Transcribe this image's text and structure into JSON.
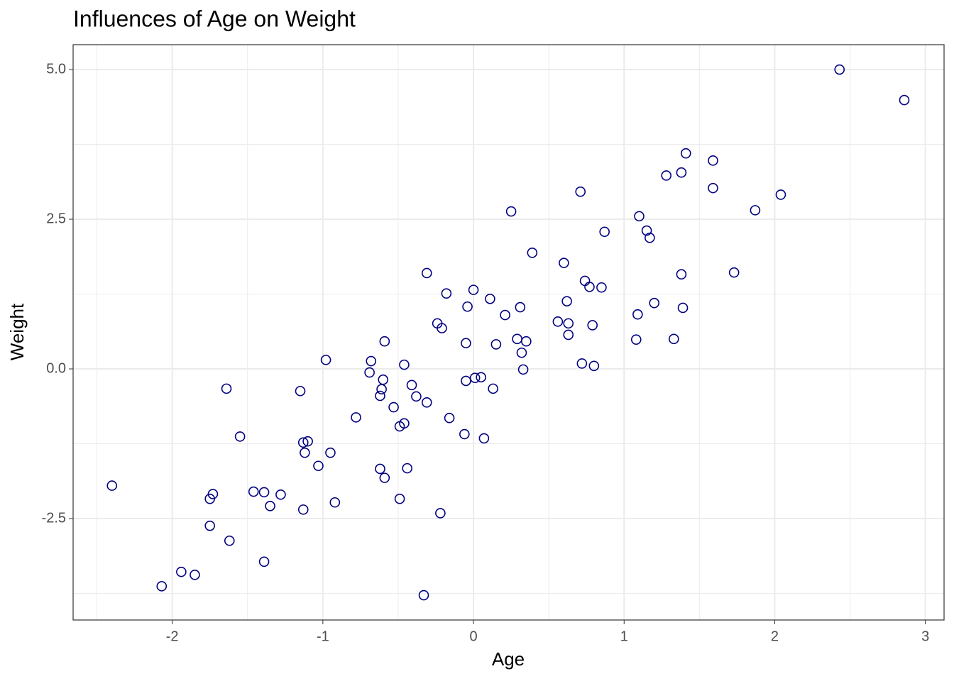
{
  "chart_data": {
    "type": "scatter",
    "title": "Influences of Age on Weight",
    "x_label": "Age",
    "y_label": "Weight",
    "xlim": [
      -2.658,
      3.124
    ],
    "ylim": [
      -4.194,
      5.415
    ],
    "xticks": [
      -2,
      -1,
      0,
      1,
      2,
      3
    ],
    "yticks": [
      {
        "value": -2.5,
        "label": "-2.5"
      },
      {
        "value": 0,
        "label": "0.0"
      },
      {
        "value": 2.5,
        "label": "2.5"
      },
      {
        "value": 5,
        "label": "5.0"
      }
    ],
    "grid": true,
    "color": "#000080",
    "x": [
      -2.4,
      -2.07,
      -1.94,
      -1.85,
      -1.75,
      -1.73,
      -1.75,
      -1.62,
      -1.64,
      -1.55,
      -1.46,
      -1.39,
      -1.39,
      -1.35,
      -1.28,
      -1.15,
      -1.13,
      -1.1,
      -1.12,
      -1.13,
      -1.03,
      -0.98,
      -0.95,
      -0.92,
      -0.78,
      -0.68,
      -0.69,
      -0.59,
      -0.6,
      -0.61,
      -0.62,
      -0.62,
      -0.59,
      -0.53,
      -0.49,
      -0.46,
      -0.46,
      -0.44,
      -0.49,
      -0.41,
      -0.38,
      -0.33,
      -0.31,
      -0.31,
      -0.24,
      -0.22,
      -0.21,
      -0.18,
      -0.16,
      -0.06,
      -0.05,
      -0.05,
      -0.04,
      0.0,
      0.01,
      0.05,
      0.07,
      0.11,
      0.13,
      0.15,
      0.21,
      0.25,
      0.29,
      0.31,
      0.32,
      0.33,
      0.35,
      0.39,
      0.56,
      0.6,
      0.62,
      0.63,
      0.63,
      0.71,
      0.72,
      0.74,
      0.77,
      0.79,
      0.8,
      0.85,
      0.87,
      1.08,
      1.09,
      1.1,
      1.15,
      1.17,
      1.2,
      1.28,
      1.33,
      1.38,
      1.38,
      1.39,
      1.41,
      1.59,
      1.59,
      1.73,
      1.87,
      2.04,
      2.43,
      2.86
    ],
    "y": [
      -1.95,
      -3.63,
      -3.39,
      -3.44,
      -2.17,
      -2.09,
      -2.62,
      -2.87,
      -0.33,
      -1.13,
      -2.05,
      -2.06,
      -3.22,
      -2.29,
      -2.1,
      -0.37,
      -1.23,
      -1.21,
      -1.4,
      -2.35,
      -1.62,
      0.15,
      -1.4,
      -2.23,
      -0.81,
      0.13,
      -0.06,
      0.46,
      -0.18,
      -0.34,
      -0.45,
      -1.67,
      -1.82,
      -0.64,
      -0.96,
      -0.91,
      0.07,
      -1.66,
      -2.17,
      -0.27,
      -0.46,
      -3.78,
      1.6,
      -0.56,
      0.76,
      -2.41,
      0.68,
      1.26,
      -0.82,
      -1.09,
      0.43,
      -0.2,
      1.04,
      1.32,
      -0.15,
      -0.14,
      -1.16,
      1.17,
      -0.33,
      0.41,
      0.9,
      2.63,
      0.5,
      1.03,
      0.27,
      -0.01,
      0.46,
      1.94,
      0.79,
      1.77,
      1.13,
      0.76,
      0.57,
      2.96,
      0.09,
      1.47,
      1.37,
      0.73,
      0.05,
      1.36,
      2.29,
      0.49,
      0.91,
      2.55,
      2.31,
      2.19,
      1.1,
      3.23,
      0.5,
      3.28,
      1.58,
      1.02,
      3.6,
      3.48,
      3.02,
      1.61,
      2.65,
      2.91,
      5.0,
      4.49
    ]
  }
}
